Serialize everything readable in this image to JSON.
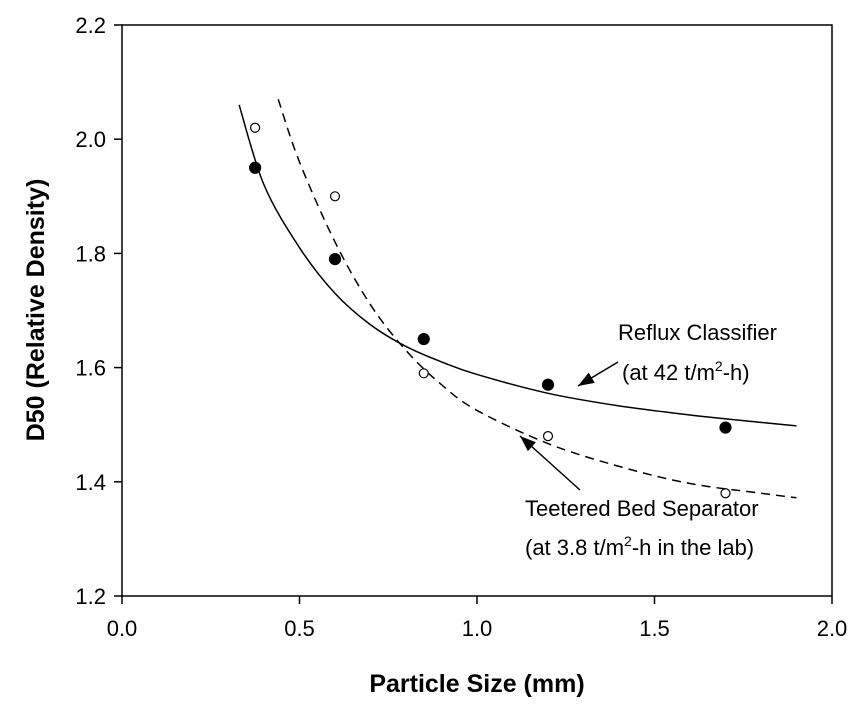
{
  "chart_data": {
    "type": "scatter",
    "xlabel": "Particle Size (mm)",
    "ylabel": "D50 (Relative Density)",
    "xlim": [
      0.0,
      2.0
    ],
    "ylim": [
      1.2,
      2.2
    ],
    "xticks": [
      "0.0",
      "0.5",
      "1.0",
      "1.5",
      "2.0"
    ],
    "yticks": [
      "1.2",
      "1.4",
      "1.6",
      "1.8",
      "2.0",
      "2.2"
    ],
    "grid": false,
    "series": [
      {
        "marker": "filled-circle",
        "x": [
          0.375,
          0.6,
          0.85,
          1.2,
          1.7
        ],
        "y": [
          1.95,
          1.79,
          1.65,
          1.57,
          1.495
        ]
      },
      {
        "marker": "open-circle",
        "x": [
          0.375,
          0.6,
          0.85,
          1.2,
          1.7
        ],
        "y": [
          2.02,
          1.9,
          1.59,
          1.48,
          1.38
        ]
      }
    ],
    "fit_curves": [
      {
        "style": "solid",
        "x": [
          0.33,
          0.4,
          0.5,
          0.6,
          0.7,
          0.8,
          0.9,
          1.0,
          1.2,
          1.4,
          1.6,
          1.8,
          1.9
        ],
        "y": [
          2.06,
          1.92,
          1.81,
          1.73,
          1.675,
          1.637,
          1.61,
          1.588,
          1.555,
          1.533,
          1.517,
          1.504,
          1.498
        ]
      },
      {
        "style": "dashed",
        "x": [
          0.44,
          0.5,
          0.6,
          0.7,
          0.8,
          0.9,
          1.0,
          1.2,
          1.4,
          1.6,
          1.8,
          1.9
        ],
        "y": [
          2.07,
          1.96,
          1.82,
          1.71,
          1.63,
          1.57,
          1.525,
          1.467,
          1.427,
          1.397,
          1.38,
          1.372
        ]
      }
    ],
    "annotations": [
      {
        "line1": "Reflux Classifier",
        "line2_pre": "(at 42 t/m",
        "line2_sup": "2",
        "line2_post": "-h)"
      },
      {
        "line1": "Teetered Bed Separator",
        "line2_pre": "(at 3.8 t/m",
        "line2_sup": "2",
        "line2_post": "-h in the lab)"
      }
    ]
  }
}
